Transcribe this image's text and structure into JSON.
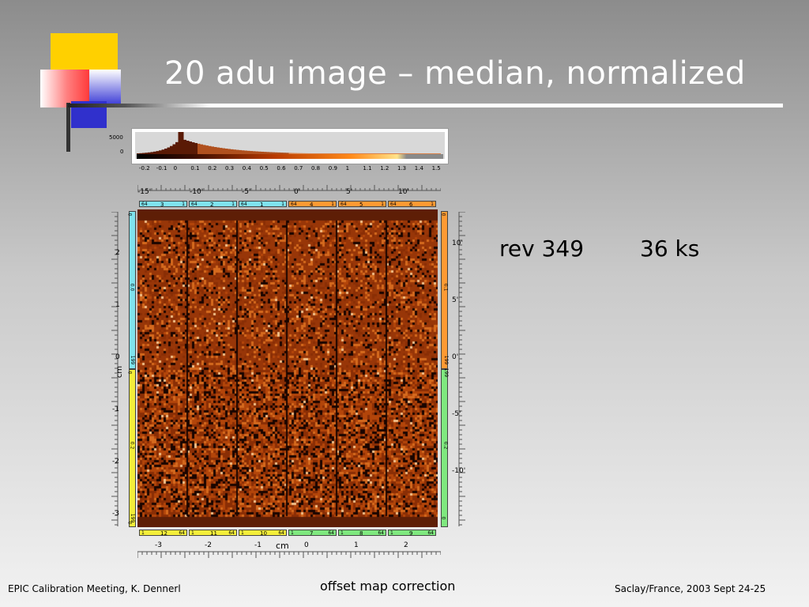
{
  "slide": {
    "title": "20 adu image – median, normalized",
    "rev": "rev 349",
    "exposure": "36 ks",
    "footer_left": "EPIC Calibration Meeting, K. Dennerl",
    "footer_center": "offset map correction",
    "footer_right": "Saclay/France, 2003 Sept 24-25"
  },
  "figure": {
    "histogram": {
      "y_ticks": [
        "5000",
        "0"
      ],
      "x_ticks": [
        "-0.2",
        "-0.1",
        "0",
        "0.1",
        "0.2",
        "0.3",
        "0.4",
        "0.5",
        "0.6",
        "0.7",
        "0.8",
        "0.9",
        "1",
        "1.1",
        "1.2",
        "1.3",
        "1.4",
        "1.5"
      ]
    },
    "top_axis_ticks": [
      "-15'",
      "-10'",
      "-5'",
      "0'",
      "5'",
      "10'"
    ],
    "bottom_axis_ticks": [
      "-3",
      "-2",
      "-1",
      "0",
      "1",
      "2"
    ],
    "bottom_axis_unit": "cm",
    "left_axis_ticks": [
      "2",
      "1",
      "0",
      "-1",
      "-2",
      "-3"
    ],
    "left_axis_unit": "cm",
    "right_axis_ticks": [
      "10'",
      "5'",
      "0'",
      "-5'",
      "-10'"
    ],
    "top_ccds": [
      {
        "l": "64",
        "n": "3",
        "r": "1",
        "color": "#7fe3ee"
      },
      {
        "l": "64",
        "n": "2",
        "r": "1",
        "color": "#7fe3ee"
      },
      {
        "l": "64",
        "n": "1",
        "r": "1",
        "color": "#7fe3ee"
      },
      {
        "l": "64",
        "n": "4",
        "r": "1",
        "color": "#ff9a33"
      },
      {
        "l": "64",
        "n": "5",
        "r": "1",
        "color": "#ff9a33"
      },
      {
        "l": "64",
        "n": "6",
        "r": "1",
        "color": "#ff9a33"
      }
    ],
    "bottom_ccds": [
      {
        "l": "1",
        "n": "12",
        "r": "64",
        "color": "#f4ee3a"
      },
      {
        "l": "1",
        "n": "11",
        "r": "64",
        "color": "#f4ee3a"
      },
      {
        "l": "1",
        "n": "10",
        "r": "64",
        "color": "#f4ee3a"
      },
      {
        "l": "1",
        "n": "7",
        "r": "64",
        "color": "#7fe87f"
      },
      {
        "l": "1",
        "n": "8",
        "r": "64",
        "color": "#7fe87f"
      },
      {
        "l": "1",
        "n": "9",
        "r": "64",
        "color": "#7fe87f"
      }
    ],
    "left_strip_labels": [
      "0",
      "0.0",
      "199",
      "0",
      "0.2",
      "199",
      "0"
    ],
    "right_strip_labels": [
      "0",
      "0.1",
      "199",
      "199",
      "0.2",
      "0"
    ]
  }
}
